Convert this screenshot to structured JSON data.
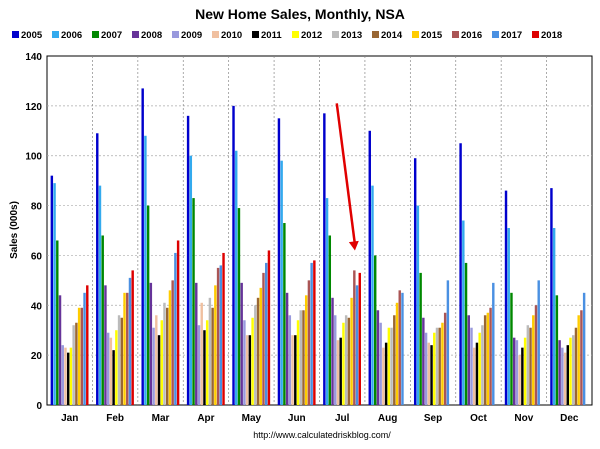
{
  "chart_data": {
    "type": "bar",
    "title": "New Home Sales, Monthly, NSA",
    "ylabel": "Sales (000s)",
    "xlabel": "",
    "source": "http://www.calculatedriskblog.com/",
    "ylim": [
      0,
      140
    ],
    "yticks": [
      0,
      20,
      40,
      60,
      80,
      100,
      120,
      140
    ],
    "grid": true,
    "legend_position": "top",
    "categories": [
      "Jan",
      "Feb",
      "Mar",
      "Apr",
      "May",
      "Jun",
      "Jul",
      "Aug",
      "Sep",
      "Oct",
      "Nov",
      "Dec"
    ],
    "series": [
      {
        "name": "2005",
        "color": "#0000cc",
        "values": [
          92,
          109,
          127,
          116,
          120,
          115,
          117,
          110,
          99,
          105,
          86,
          87
        ]
      },
      {
        "name": "2006",
        "color": "#33aaee",
        "values": [
          89,
          88,
          108,
          100,
          102,
          98,
          83,
          88,
          80,
          74,
          71,
          71
        ]
      },
      {
        "name": "2007",
        "color": "#008800",
        "values": [
          66,
          68,
          80,
          83,
          79,
          73,
          68,
          60,
          53,
          57,
          45,
          44
        ]
      },
      {
        "name": "2008",
        "color": "#663399",
        "values": [
          44,
          48,
          49,
          49,
          49,
          45,
          43,
          38,
          35,
          36,
          27,
          26
        ]
      },
      {
        "name": "2009",
        "color": "#9999dd",
        "values": [
          24,
          29,
          31,
          32,
          34,
          36,
          36,
          33,
          29,
          31,
          26,
          23
        ]
      },
      {
        "name": "2010",
        "color": "#f0c0a0",
        "values": [
          23,
          27,
          36,
          41,
          28,
          28,
          26,
          23,
          25,
          23,
          20,
          21
        ]
      },
      {
        "name": "2011",
        "color": "#000000",
        "values": [
          21,
          22,
          28,
          30,
          28,
          28,
          27,
          25,
          24,
          25,
          23,
          24
        ]
      },
      {
        "name": "2012",
        "color": "#ffff00",
        "values": [
          23,
          30,
          34,
          34,
          35,
          34,
          33,
          31,
          29,
          29,
          27,
          27
        ]
      },
      {
        "name": "2013",
        "color": "#bbbbbb",
        "values": [
          32,
          36,
          41,
          43,
          40,
          38,
          36,
          31,
          31,
          32,
          32,
          28
        ]
      },
      {
        "name": "2014",
        "color": "#996633",
        "values": [
          33,
          35,
          39,
          39,
          43,
          38,
          35,
          36,
          31,
          36,
          31,
          31
        ]
      },
      {
        "name": "2015",
        "color": "#ffcc00",
        "values": [
          39,
          45,
          46,
          48,
          47,
          44,
          43,
          41,
          33,
          37,
          36,
          36
        ]
      },
      {
        "name": "2016",
        "color": "#aa5555",
        "values": [
          39,
          45,
          50,
          55,
          53,
          50,
          54,
          46,
          37,
          39,
          40,
          38
        ]
      },
      {
        "name": "2017",
        "color": "#4a90e2",
        "values": [
          45,
          51,
          61,
          56,
          57,
          57,
          48,
          45,
          50,
          49,
          50,
          45
        ]
      },
      {
        "name": "2018",
        "color": "#dd0000",
        "values": [
          48,
          54,
          66,
          61,
          62,
          58,
          53,
          null,
          null,
          null,
          null,
          null
        ]
      }
    ]
  }
}
